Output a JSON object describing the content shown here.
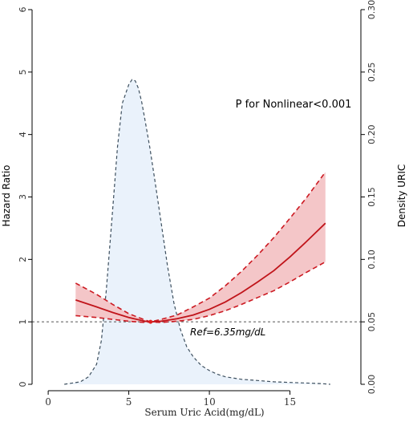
{
  "chart_data": {
    "type": "line",
    "xlabel": "Serum Uric Acid(mg/dL)",
    "ylabel": "Hazard Ratio",
    "y2label": "Density URIC",
    "xlim": [
      -1,
      19.4
    ],
    "ylim": [
      0,
      6
    ],
    "y2lim": [
      0,
      0.3
    ],
    "x_ticks": [
      0,
      5,
      10,
      15
    ],
    "y_ticks": [
      0,
      1,
      2,
      3,
      4,
      5,
      6
    ],
    "y2_ticks": [
      "0.00",
      "0.05",
      "0.10",
      "0.15",
      "0.20",
      "0.25",
      "0.30"
    ],
    "annotation": "P for Nonlinear<0.001",
    "reference_label": "Ref=6.35mg/dL",
    "reference_x": 6.35,
    "reference_y": 1,
    "colors": {
      "hr_line": "#c0141a",
      "ci_fill": "#f4c6c8",
      "ci_line": "#cc1a22",
      "density_fill": "#eaf2fb",
      "density_line": "#3d4f5e",
      "ref_line": "#555555",
      "ref_point": "#e02020"
    },
    "series": [
      {
        "x": [
          1.7,
          3.0,
          4.0,
          5.0,
          6.0,
          6.35,
          7.0,
          8.0,
          9.0,
          10.0,
          11.0,
          12.0,
          13.0,
          14.0,
          15.0,
          16.0,
          17.2
        ],
        "y": [
          1.35,
          1.24,
          1.15,
          1.07,
          1.01,
          1.0,
          1.01,
          1.05,
          1.11,
          1.2,
          1.32,
          1.47,
          1.64,
          1.82,
          2.04,
          2.28,
          2.58
        ],
        "lower": [
          1.1,
          1.07,
          1.04,
          1.01,
          0.99,
          1.0,
          0.99,
          1.01,
          1.04,
          1.1,
          1.18,
          1.28,
          1.39,
          1.5,
          1.64,
          1.79,
          1.96
        ],
        "upper": [
          1.62,
          1.44,
          1.28,
          1.13,
          1.03,
          1.0,
          1.04,
          1.11,
          1.24,
          1.38,
          1.58,
          1.81,
          2.07,
          2.35,
          2.66,
          2.98,
          3.4
        ]
      },
      {
        "x": [
          1.0,
          2.0,
          2.5,
          3.0,
          3.3,
          3.6,
          4.0,
          4.3,
          4.6,
          5.0,
          5.2,
          5.4,
          5.6,
          5.8,
          6.0,
          6.3,
          6.6,
          7.0,
          7.4,
          7.8,
          8.2,
          8.6,
          9.0,
          9.5,
          10.0,
          10.5,
          11.0,
          12.0,
          13.0,
          14.0,
          15.0,
          16.0,
          17.0,
          17.5
        ],
        "y": [
          0.0,
          0.002,
          0.006,
          0.016,
          0.035,
          0.075,
          0.14,
          0.19,
          0.225,
          0.24,
          0.244,
          0.243,
          0.237,
          0.226,
          0.212,
          0.19,
          0.165,
          0.13,
          0.095,
          0.065,
          0.044,
          0.03,
          0.022,
          0.015,
          0.011,
          0.008,
          0.006,
          0.004,
          0.003,
          0.002,
          0.0015,
          0.001,
          0.0005,
          0.0
        ]
      }
    ]
  }
}
